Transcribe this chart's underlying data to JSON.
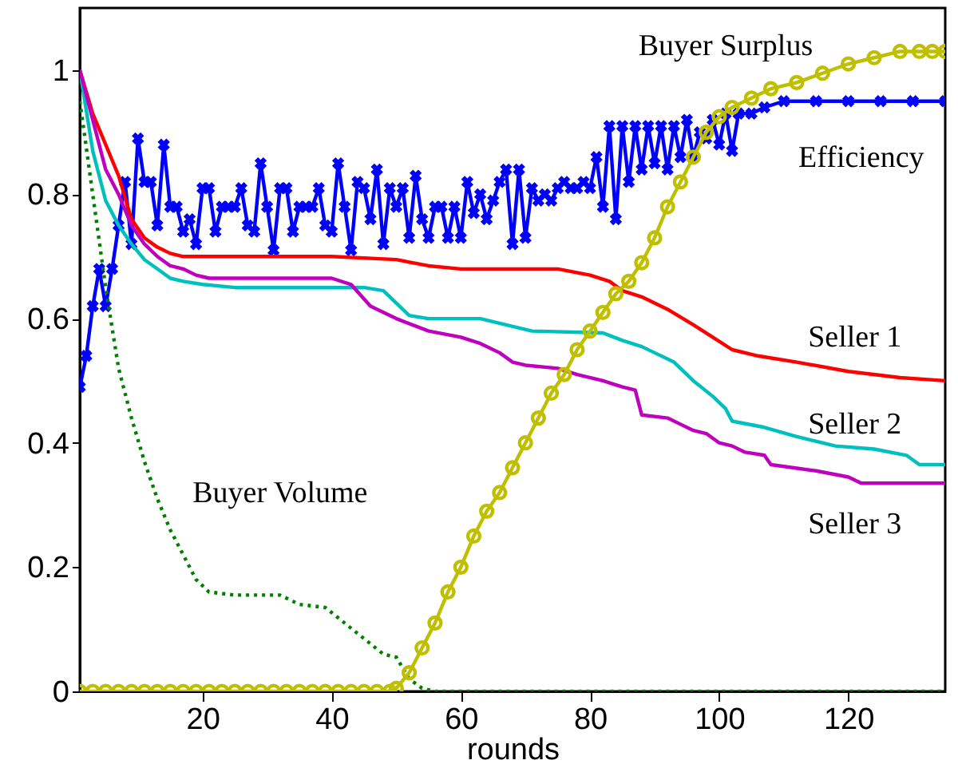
{
  "chart_data": {
    "type": "line",
    "xlabel": "rounds",
    "xlim": [
      1,
      135
    ],
    "ylim": [
      0,
      1.1
    ],
    "xticks": [
      20,
      40,
      60,
      80,
      100,
      120
    ],
    "yticks": [
      0,
      0.2,
      0.4,
      0.6,
      0.8,
      1
    ],
    "grid": false,
    "series": [
      {
        "name": "Efficiency",
        "color": "#0000ff",
        "marker": "cross",
        "line_style": "solid",
        "x": [
          1,
          2,
          3,
          4,
          5,
          6,
          7,
          8,
          9,
          10,
          11,
          12,
          13,
          14,
          15,
          16,
          17,
          18,
          19,
          20,
          21,
          22,
          23,
          24,
          25,
          26,
          27,
          28,
          29,
          30,
          31,
          32,
          33,
          34,
          35,
          36,
          37,
          38,
          39,
          40,
          41,
          42,
          43,
          44,
          45,
          46,
          47,
          48,
          49,
          50,
          51,
          52,
          53,
          54,
          55,
          56,
          57,
          58,
          59,
          60,
          61,
          62,
          63,
          64,
          65,
          66,
          67,
          68,
          69,
          70,
          71,
          72,
          73,
          74,
          75,
          76,
          77,
          78,
          79,
          80,
          81,
          82,
          83,
          84,
          85,
          86,
          87,
          88,
          89,
          90,
          91,
          92,
          93,
          94,
          95,
          96,
          97,
          98,
          99,
          100,
          101,
          102,
          103,
          105,
          107,
          110,
          115,
          120,
          125,
          130,
          135
        ],
        "values": [
          0.49,
          0.54,
          0.62,
          0.68,
          0.62,
          0.68,
          0.75,
          0.82,
          0.72,
          0.89,
          0.82,
          0.82,
          0.75,
          0.88,
          0.78,
          0.78,
          0.74,
          0.76,
          0.72,
          0.81,
          0.81,
          0.74,
          0.78,
          0.78,
          0.78,
          0.81,
          0.75,
          0.74,
          0.85,
          0.78,
          0.71,
          0.81,
          0.81,
          0.74,
          0.78,
          0.78,
          0.78,
          0.81,
          0.75,
          0.74,
          0.85,
          0.78,
          0.71,
          0.82,
          0.81,
          0.76,
          0.84,
          0.72,
          0.81,
          0.78,
          0.81,
          0.73,
          0.83,
          0.76,
          0.73,
          0.78,
          0.78,
          0.73,
          0.78,
          0.73,
          0.82,
          0.77,
          0.8,
          0.76,
          0.79,
          0.82,
          0.84,
          0.72,
          0.84,
          0.73,
          0.81,
          0.79,
          0.8,
          0.79,
          0.81,
          0.82,
          0.81,
          0.81,
          0.82,
          0.81,
          0.86,
          0.78,
          0.91,
          0.76,
          0.91,
          0.82,
          0.91,
          0.84,
          0.91,
          0.85,
          0.91,
          0.84,
          0.91,
          0.86,
          0.92,
          0.86,
          0.9,
          0.89,
          0.92,
          0.88,
          0.93,
          0.87,
          0.93,
          0.93,
          0.94,
          0.95,
          0.95,
          0.95,
          0.95,
          0.95,
          0.95
        ]
      },
      {
        "name": "Seller 1",
        "color": "#ff0000",
        "marker": "none",
        "line_style": "solid",
        "x": [
          1,
          3,
          5,
          7,
          9,
          11,
          13,
          15,
          17,
          40,
          50,
          55,
          60,
          75,
          80,
          83,
          85,
          88,
          92,
          96,
          99,
          102,
          106,
          112,
          120,
          128,
          135
        ],
        "values": [
          1,
          0.93,
          0.88,
          0.83,
          0.76,
          0.73,
          0.715,
          0.705,
          0.7,
          0.7,
          0.695,
          0.685,
          0.68,
          0.68,
          0.67,
          0.66,
          0.645,
          0.635,
          0.615,
          0.59,
          0.57,
          0.55,
          0.54,
          0.53,
          0.515,
          0.505,
          0.5
        ]
      },
      {
        "name": "Seller 2",
        "color": "#00bfbf",
        "marker": "none",
        "line_style": "solid",
        "x": [
          1,
          3,
          5,
          7,
          9,
          11,
          13,
          15,
          17,
          20,
          25,
          45,
          48,
          50,
          52,
          55,
          63,
          67,
          71,
          82,
          85,
          88,
          90,
          93,
          96,
          99,
          101,
          102,
          107,
          112,
          118,
          124,
          129,
          131,
          135
        ],
        "values": [
          1,
          0.87,
          0.79,
          0.75,
          0.72,
          0.695,
          0.68,
          0.665,
          0.66,
          0.655,
          0.65,
          0.65,
          0.645,
          0.625,
          0.605,
          0.6,
          0.6,
          0.59,
          0.58,
          0.577,
          0.565,
          0.555,
          0.545,
          0.53,
          0.5,
          0.475,
          0.455,
          0.435,
          0.425,
          0.41,
          0.395,
          0.39,
          0.38,
          0.365,
          0.365
        ]
      },
      {
        "name": "Seller 3",
        "color": "#bf00bf",
        "marker": "none",
        "line_style": "solid",
        "x": [
          1,
          3,
          5,
          7,
          9,
          11,
          13,
          15,
          17,
          19,
          21,
          40,
          43,
          46,
          50,
          55,
          60,
          63,
          66,
          68,
          70,
          75,
          78,
          82,
          85,
          87,
          88,
          92,
          94,
          96,
          98,
          100,
          102,
          104,
          107,
          108,
          115,
          120,
          122,
          135
        ],
        "values": [
          1,
          0.92,
          0.84,
          0.8,
          0.75,
          0.72,
          0.7,
          0.685,
          0.68,
          0.67,
          0.665,
          0.665,
          0.655,
          0.62,
          0.6,
          0.58,
          0.57,
          0.56,
          0.545,
          0.53,
          0.525,
          0.52,
          0.51,
          0.5,
          0.49,
          0.485,
          0.445,
          0.44,
          0.43,
          0.42,
          0.415,
          0.4,
          0.395,
          0.385,
          0.38,
          0.365,
          0.355,
          0.345,
          0.335,
          0.335
        ]
      },
      {
        "name": "Buyer Volume",
        "color": "#008000",
        "marker": "none",
        "line_style": "dotted",
        "x": [
          1,
          3,
          5,
          7,
          9,
          11,
          13,
          15,
          17,
          19,
          21,
          25,
          32,
          35,
          39,
          42,
          45,
          48,
          50,
          52,
          54,
          56,
          135
        ],
        "values": [
          0.95,
          0.8,
          0.65,
          0.52,
          0.44,
          0.37,
          0.31,
          0.26,
          0.22,
          0.18,
          0.16,
          0.155,
          0.155,
          0.14,
          0.135,
          0.11,
          0.085,
          0.06,
          0.055,
          0.02,
          0.005,
          0,
          0
        ]
      },
      {
        "name": "Buyer Surplus",
        "color": "#bfbf00",
        "marker": "circle",
        "line_style": "solid",
        "x": [
          1,
          3,
          5,
          7,
          9,
          11,
          13,
          15,
          17,
          19,
          21,
          23,
          25,
          27,
          29,
          31,
          33,
          35,
          37,
          39,
          41,
          43,
          45,
          47,
          49,
          50,
          52,
          54,
          56,
          58,
          60,
          62,
          64,
          66,
          68,
          70,
          72,
          74,
          76,
          78,
          80,
          82,
          84,
          86,
          88,
          90,
          92,
          94,
          96,
          98,
          100,
          102,
          105,
          108,
          112,
          116,
          120,
          124,
          128,
          131,
          133,
          135
        ],
        "values": [
          0,
          0,
          0,
          0,
          0,
          0,
          0,
          0,
          0,
          0,
          0,
          0,
          0,
          0,
          0,
          0,
          0,
          0,
          0,
          0,
          0,
          0,
          0,
          0,
          0,
          0.005,
          0.03,
          0.07,
          0.11,
          0.16,
          0.2,
          0.25,
          0.29,
          0.32,
          0.36,
          0.4,
          0.44,
          0.48,
          0.51,
          0.55,
          0.58,
          0.61,
          0.64,
          0.66,
          0.69,
          0.73,
          0.78,
          0.82,
          0.86,
          0.9,
          0.925,
          0.94,
          0.955,
          0.97,
          0.98,
          0.995,
          1.01,
          1.02,
          1.03,
          1.03,
          1.03,
          1.03
        ]
      }
    ]
  }
}
